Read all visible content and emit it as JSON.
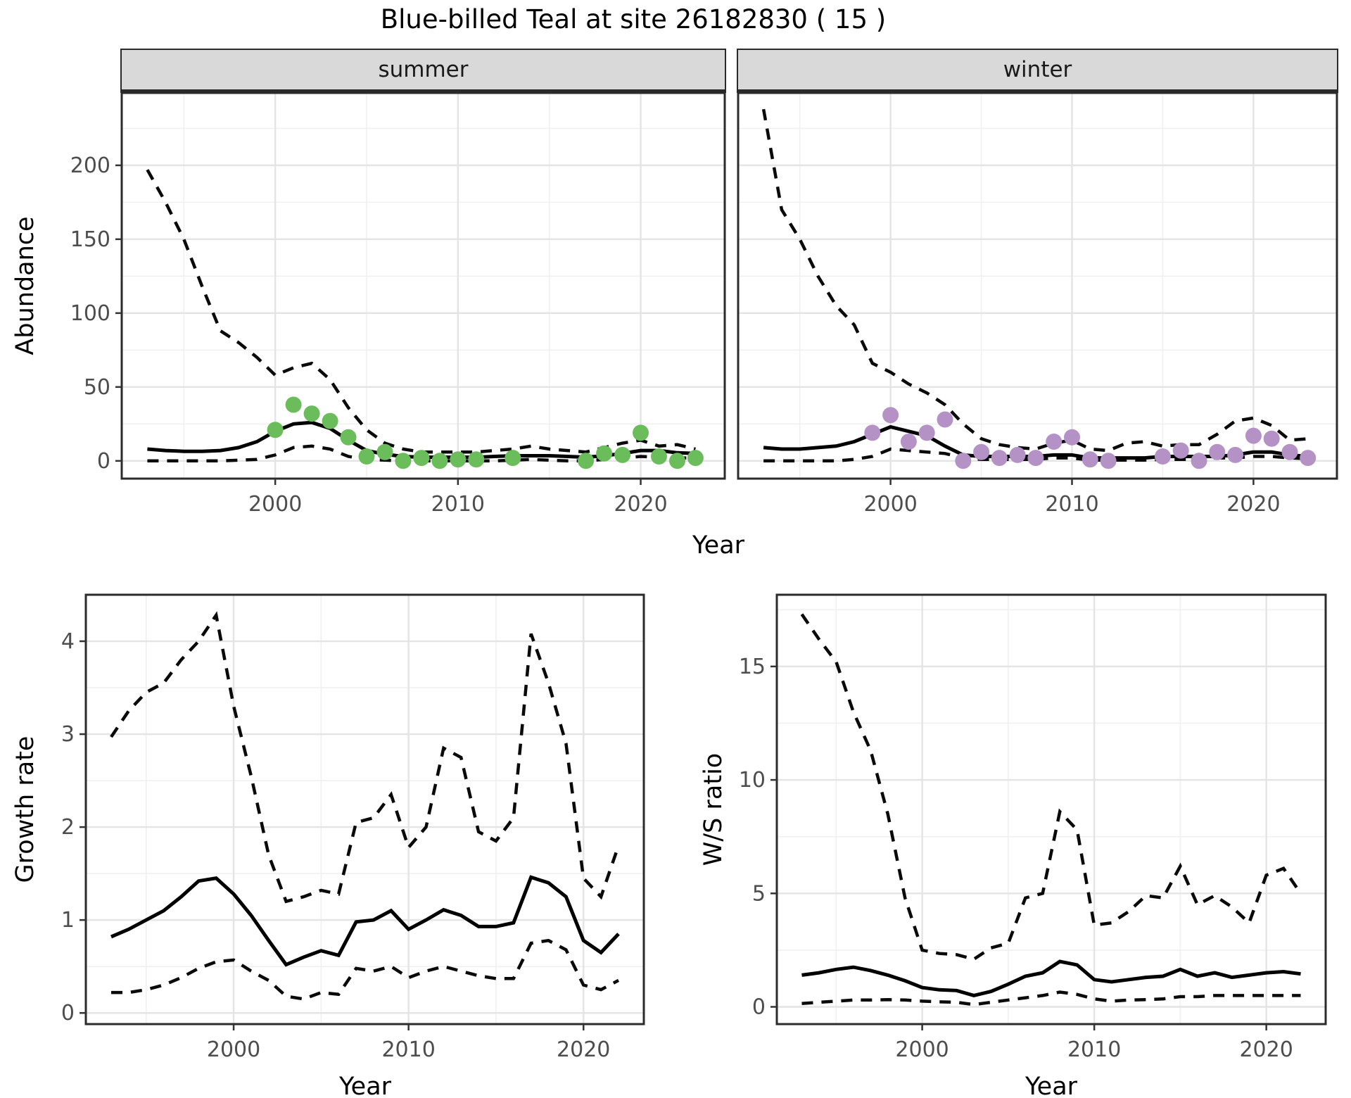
{
  "title": "Blue-billed Teal at site 26182830 ( 15 )",
  "facets": {
    "summer": "summer",
    "winter": "winter"
  },
  "axis_titles": {
    "abundance": "Abundance",
    "year": "Year",
    "growth_rate": "Growth rate",
    "ws_ratio": "W/S ratio"
  },
  "colors": {
    "summer_points": "#6bbd5b",
    "winter_points": "#b492c6",
    "fit_line": "#000000",
    "ci_line": "#0a0a0a",
    "strip_bg": "#d9d9d9",
    "panel_border": "#2b2b2b",
    "grid_major": "#e4e4e4",
    "grid_minor": "#f0f0f0",
    "tick_text": "#4d4d4d"
  },
  "chart_data": [
    {
      "id": "abundance_summer",
      "type": "line",
      "facet": "summer",
      "xlabel": "Year",
      "ylabel": "Abundance",
      "xlim": [
        1991.6,
        2024.6
      ],
      "ylim": [
        -12,
        249
      ],
      "x_ticks": [
        2000,
        2010,
        2020
      ],
      "x_minor": [
        1995,
        2005,
        2015
      ],
      "y_ticks": [
        0,
        50,
        100,
        150,
        200
      ],
      "y_minor": [
        25,
        75,
        125,
        175,
        225
      ],
      "years": [
        1993,
        1994,
        1995,
        1996,
        1997,
        1998,
        1999,
        2000,
        2001,
        2002,
        2003,
        2004,
        2005,
        2006,
        2007,
        2008,
        2009,
        2010,
        2011,
        2012,
        2013,
        2014,
        2015,
        2016,
        2017,
        2018,
        2019,
        2020,
        2021,
        2022,
        2023
      ],
      "series": [
        {
          "name": "upper_ci",
          "style": "dashed",
          "values": [
            197,
            175,
            150,
            118,
            88,
            80,
            70,
            58,
            63,
            66,
            55,
            36,
            21,
            12,
            8,
            6,
            6,
            6,
            6,
            7,
            8,
            10,
            8,
            7,
            6,
            9,
            12,
            14,
            10,
            11,
            8
          ]
        },
        {
          "name": "lower_ci",
          "style": "dashed",
          "values": [
            0,
            0,
            0,
            0,
            0,
            0.5,
            1,
            4,
            9,
            10,
            8,
            3,
            1,
            0.5,
            0,
            0,
            0,
            0,
            0,
            0,
            0.5,
            1,
            0.5,
            0,
            0,
            1,
            2,
            3,
            2.5,
            2,
            2
          ]
        },
        {
          "name": "fit",
          "style": "solid",
          "values": [
            8,
            7,
            6.5,
            6.5,
            7,
            9,
            13,
            20,
            25,
            26,
            22,
            14,
            7,
            4.5,
            3,
            2.5,
            2.5,
            2.5,
            2.5,
            3,
            3.5,
            3.5,
            3.5,
            3,
            2.5,
            3.5,
            5,
            7,
            7,
            5.5,
            5
          ]
        }
      ],
      "points": {
        "name": "observed_summer_counts",
        "color_key": "summer_points",
        "years": [
          2000,
          2001,
          2002,
          2003,
          2004,
          2005,
          2006,
          2007,
          2008,
          2009,
          2010,
          2011,
          2013,
          2017,
          2018,
          2019,
          2020,
          2021,
          2022,
          2023
        ],
        "values": [
          21,
          38,
          32,
          27,
          16,
          3,
          6,
          0,
          2,
          0,
          1,
          1,
          2,
          0,
          5,
          4,
          19,
          3,
          0,
          2
        ]
      }
    },
    {
      "id": "abundance_winter",
      "type": "line",
      "facet": "winter",
      "xlabel": "Year",
      "ylabel": "Abundance",
      "xlim": [
        1991.6,
        2024.6
      ],
      "ylim": [
        -12,
        249
      ],
      "x_ticks": [
        2000,
        2010,
        2020
      ],
      "x_minor": [
        1995,
        2005,
        2015
      ],
      "y_ticks": [
        0,
        50,
        100,
        150,
        200
      ],
      "y_minor": [
        25,
        75,
        125,
        175,
        225
      ],
      "years": [
        1993,
        1994,
        1995,
        1996,
        1997,
        1998,
        1999,
        2000,
        2001,
        2002,
        2003,
        2004,
        2005,
        2006,
        2007,
        2008,
        2009,
        2010,
        2011,
        2012,
        2013,
        2014,
        2015,
        2016,
        2017,
        2018,
        2019,
        2020,
        2021,
        2022,
        2023
      ],
      "series": [
        {
          "name": "upper_ci",
          "style": "dashed",
          "values": [
            238,
            170,
            150,
            125,
            105,
            92,
            66,
            60,
            52,
            46,
            38,
            25,
            15,
            11,
            9,
            8,
            12,
            14,
            8,
            7,
            12,
            13,
            10,
            11,
            11,
            18,
            27,
            29,
            24,
            14,
            15
          ]
        },
        {
          "name": "lower_ci",
          "style": "dashed",
          "values": [
            0,
            0,
            0,
            0,
            0,
            1,
            3,
            8,
            7,
            6,
            5,
            2,
            1,
            1,
            1,
            1,
            2,
            2,
            0.5,
            0.5,
            0.5,
            0.5,
            1,
            1,
            1,
            2,
            2,
            3,
            3,
            2,
            1.5
          ]
        },
        {
          "name": "fit",
          "style": "solid",
          "values": [
            9,
            8,
            8,
            9,
            10,
            13,
            18,
            23,
            20,
            17,
            10,
            4,
            3,
            3,
            3,
            3,
            4,
            4,
            2,
            2,
            2,
            2,
            3,
            3,
            3,
            3,
            4,
            6,
            6,
            4,
            3
          ]
        }
      ],
      "points": {
        "name": "observed_winter_counts",
        "color_key": "winter_points",
        "years": [
          1999,
          2000,
          2001,
          2002,
          2003,
          2004,
          2005,
          2006,
          2007,
          2008,
          2009,
          2010,
          2011,
          2012,
          2015,
          2016,
          2017,
          2018,
          2019,
          2020,
          2021,
          2022,
          2023
        ],
        "values": [
          19,
          31,
          13,
          19,
          28,
          0,
          6,
          2,
          4,
          2,
          13,
          16,
          1,
          0,
          3,
          7,
          0,
          6,
          4,
          17,
          15,
          6,
          2
        ]
      }
    },
    {
      "id": "growth_rate",
      "type": "line",
      "xlabel": "Year",
      "ylabel": "Growth rate",
      "xlim": [
        1991.55,
        2023.45
      ],
      "ylim": [
        -0.12,
        4.5
      ],
      "x_ticks": [
        2000,
        2010,
        2020
      ],
      "x_minor": [
        1995,
        2005,
        2015
      ],
      "y_ticks": [
        0,
        1,
        2,
        3,
        4
      ],
      "y_minor": [
        0.5,
        1.5,
        2.5,
        3.5
      ],
      "years": [
        1993,
        1994,
        1995,
        1996,
        1997,
        1998,
        1999,
        2000,
        2001,
        2002,
        2003,
        2004,
        2005,
        2006,
        2007,
        2008,
        2009,
        2010,
        2011,
        2012,
        2013,
        2014,
        2015,
        2016,
        2017,
        2018,
        2019,
        2020,
        2021,
        2022
      ],
      "series": [
        {
          "name": "upper_ci",
          "style": "dashed",
          "values": [
            2.97,
            3.25,
            3.45,
            3.55,
            3.8,
            4.0,
            4.28,
            3.3,
            2.55,
            1.7,
            1.2,
            1.25,
            1.32,
            1.28,
            2.05,
            2.1,
            2.35,
            1.78,
            2.0,
            2.85,
            2.75,
            1.95,
            1.85,
            2.1,
            4.08,
            3.55,
            2.9,
            1.45,
            1.25,
            1.8
          ]
        },
        {
          "name": "lower_ci",
          "style": "dashed",
          "values": [
            0.22,
            0.22,
            0.25,
            0.3,
            0.38,
            0.48,
            0.55,
            0.57,
            0.45,
            0.35,
            0.18,
            0.15,
            0.22,
            0.2,
            0.48,
            0.45,
            0.5,
            0.38,
            0.45,
            0.5,
            0.45,
            0.4,
            0.37,
            0.37,
            0.75,
            0.78,
            0.68,
            0.3,
            0.25,
            0.35
          ]
        },
        {
          "name": "fit",
          "style": "solid",
          "values": [
            0.82,
            0.9,
            1.0,
            1.1,
            1.25,
            1.42,
            1.45,
            1.28,
            1.05,
            0.78,
            0.52,
            0.6,
            0.67,
            0.62,
            0.98,
            1.0,
            1.1,
            0.9,
            1.0,
            1.11,
            1.05,
            0.93,
            0.93,
            0.97,
            1.46,
            1.4,
            1.25,
            0.78,
            0.65,
            0.85
          ]
        }
      ]
    },
    {
      "id": "ws_ratio",
      "type": "line",
      "xlabel": "Year",
      "ylabel": "W/S ratio",
      "xlim": [
        1991.55,
        2023.45
      ],
      "ylim": [
        -0.76,
        18.16
      ],
      "x_ticks": [
        2000,
        2010,
        2020
      ],
      "x_minor": [
        1995,
        2005,
        2015
      ],
      "y_ticks": [
        0,
        5,
        10,
        15
      ],
      "y_minor": [
        2.5,
        7.5,
        12.5,
        17.5
      ],
      "years": [
        1993,
        1994,
        1995,
        1996,
        1997,
        1998,
        1999,
        2000,
        2001,
        2002,
        2003,
        2004,
        2005,
        2006,
        2007,
        2008,
        2009,
        2010,
        2011,
        2012,
        2013,
        2014,
        2015,
        2016,
        2017,
        2018,
        2019,
        2020,
        2021,
        2022
      ],
      "series": [
        {
          "name": "upper_ci",
          "style": "dashed",
          "values": [
            17.3,
            16.2,
            15.2,
            13.0,
            11.3,
            8.5,
            4.8,
            2.5,
            2.35,
            2.3,
            2.1,
            2.6,
            2.8,
            4.8,
            5.0,
            8.6,
            7.8,
            3.6,
            3.7,
            4.2,
            4.9,
            4.8,
            6.2,
            4.5,
            4.9,
            4.4,
            3.7,
            5.8,
            6.1,
            5.0
          ]
        },
        {
          "name": "lower_ci",
          "style": "dashed",
          "values": [
            0.15,
            0.2,
            0.25,
            0.3,
            0.3,
            0.32,
            0.3,
            0.25,
            0.22,
            0.2,
            0.1,
            0.2,
            0.3,
            0.4,
            0.5,
            0.65,
            0.55,
            0.35,
            0.25,
            0.3,
            0.32,
            0.35,
            0.45,
            0.45,
            0.5,
            0.5,
            0.5,
            0.5,
            0.5,
            0.5
          ]
        },
        {
          "name": "fit",
          "style": "solid",
          "values": [
            1.4,
            1.5,
            1.65,
            1.75,
            1.6,
            1.4,
            1.15,
            0.85,
            0.75,
            0.72,
            0.5,
            0.68,
            1.0,
            1.35,
            1.5,
            2.0,
            1.85,
            1.2,
            1.1,
            1.2,
            1.3,
            1.35,
            1.65,
            1.35,
            1.5,
            1.3,
            1.4,
            1.5,
            1.55,
            1.45
          ]
        }
      ]
    }
  ]
}
